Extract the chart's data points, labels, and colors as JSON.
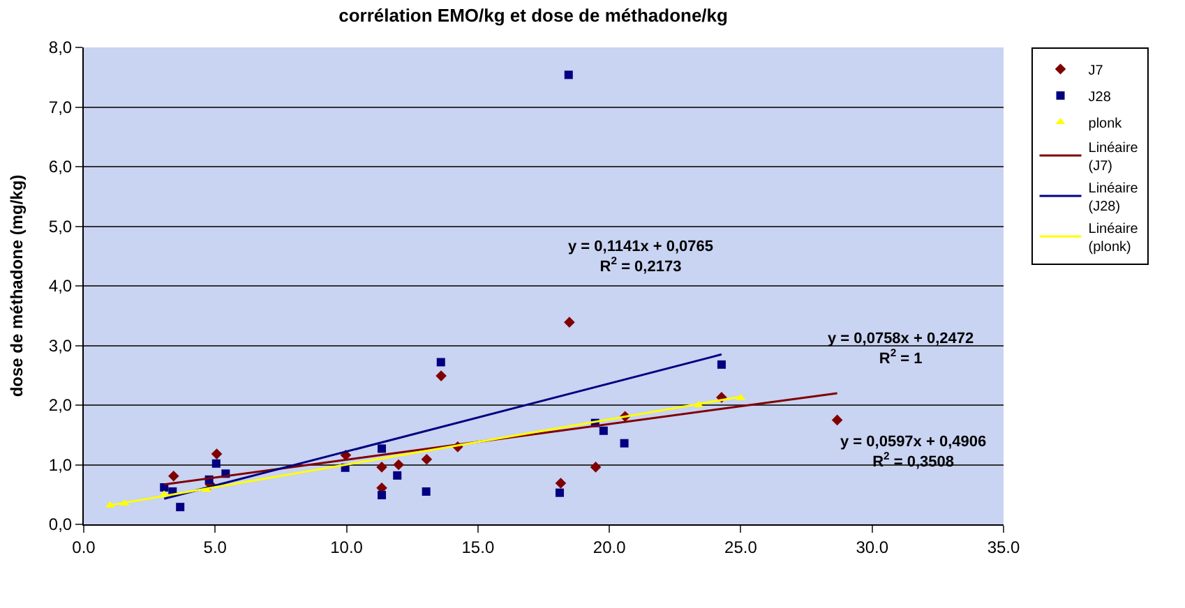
{
  "chart_data": {
    "type": "scatter",
    "title": "corrélation EMO/kg et dose de méthadone/kg",
    "ylabel": "dose de méthadone (mg/kg)",
    "xlim": [
      0,
      35
    ],
    "xticks": [
      {
        "value": 0,
        "label": "0.0"
      },
      {
        "value": 5,
        "label": "5.0"
      },
      {
        "value": 10,
        "label": "10.0"
      },
      {
        "value": 15,
        "label": "15.0"
      },
      {
        "value": 20,
        "label": "20.0"
      },
      {
        "value": 25,
        "label": "25.0"
      },
      {
        "value": 30,
        "label": "30.0"
      },
      {
        "value": 35,
        "label": "35.0"
      }
    ],
    "ylim": [
      0,
      8
    ],
    "yticks": [
      {
        "value": 0,
        "label": "0,0"
      },
      {
        "value": 1,
        "label": "1,0"
      },
      {
        "value": 2,
        "label": "2,0"
      },
      {
        "value": 3,
        "label": "3,0"
      },
      {
        "value": 4,
        "label": "4,0"
      },
      {
        "value": 5,
        "label": "5,0"
      },
      {
        "value": 6,
        "label": "6,0"
      },
      {
        "value": 7,
        "label": "7,0"
      },
      {
        "value": 8,
        "label": "8,0"
      }
    ],
    "grid": "y",
    "legend": "right",
    "series": [
      {
        "name": "J7",
        "marker": "diamond",
        "color": "#800000",
        "x": [
          3.42,
          4.81,
          5.06,
          9.97,
          11.34,
          11.34,
          11.98,
          13.05,
          13.6,
          14.23,
          18.15,
          18.48,
          19.48,
          20.6,
          24.27,
          28.67
        ],
        "values": [
          0.81,
          0.67,
          1.18,
          1.16,
          0.96,
          0.61,
          1.0,
          1.09,
          2.49,
          1.3,
          0.69,
          3.39,
          0.96,
          1.81,
          2.13,
          1.75
        ]
      },
      {
        "name": "J28",
        "marker": "square",
        "color": "#000080",
        "x": [
          3.06,
          3.38,
          3.67,
          4.77,
          5.04,
          5.4,
          9.95,
          11.34,
          11.34,
          11.93,
          13.03,
          13.59,
          18.11,
          18.45,
          19.46,
          19.78,
          20.57,
          24.27
        ],
        "values": [
          0.62,
          0.55,
          0.29,
          0.75,
          1.02,
          0.85,
          0.95,
          1.27,
          0.49,
          0.82,
          0.55,
          2.72,
          0.53,
          7.54,
          1.7,
          1.57,
          1.36,
          2.68
        ]
      },
      {
        "name": "plonk",
        "marker": "triangle",
        "color": "#ffff00",
        "x": [
          1.0,
          1.55,
          3.06,
          4.67,
          23.4,
          25.0
        ],
        "values": [
          0.32,
          0.35,
          0.5,
          0.58,
          2.0,
          2.12
        ]
      },
      {
        "name": "Linéaire (J7)",
        "type": "line",
        "color": "#800000",
        "x": [
          3.06,
          28.67
        ],
        "values": [
          0.67,
          2.2
        ]
      },
      {
        "name": "Linéaire (J28)",
        "type": "line",
        "color": "#000080",
        "x": [
          3.06,
          24.27
        ],
        "values": [
          0.43,
          2.85
        ]
      },
      {
        "name": "Linéaire (plonk)",
        "type": "line",
        "color": "#ffff00",
        "x": [
          1.0,
          25.0
        ],
        "values": [
          0.32,
          2.14
        ]
      }
    ],
    "annotations": [
      "y = 0,1141x + 0,0765\nR$^{2}$ = 0,2173",
      "y = 0,0758x + 0,2472\nR$^{2}$ = 1",
      "y = 0,0597x + 0,4906\nR$^{2}$ = 0,3508"
    ]
  }
}
